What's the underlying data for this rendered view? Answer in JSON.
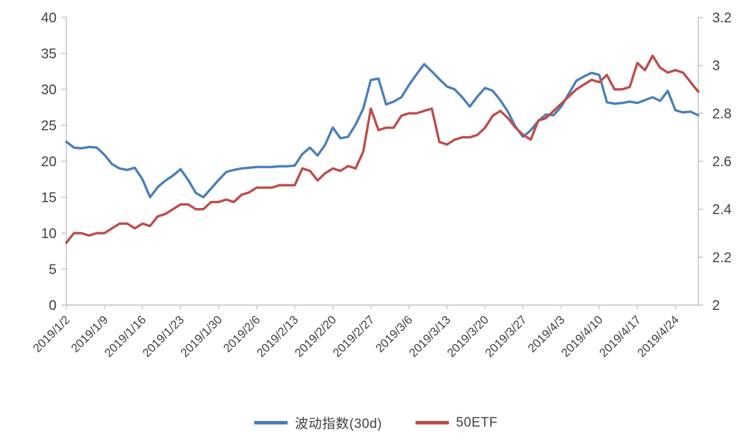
{
  "chart_data": {
    "type": "line",
    "title": "",
    "x_labels": [
      "2019/1/2",
      "2019/1/9",
      "2019/1/16",
      "2019/1/23",
      "2019/1/30",
      "2019/2/6",
      "2019/2/13",
      "2019/2/20",
      "2019/2/27",
      "2019/3/6",
      "2019/3/13",
      "2019/3/20",
      "2019/3/27",
      "2019/4/3",
      "2019/4/10",
      "2019/4/17",
      "2019/4/24"
    ],
    "label_every": 5,
    "left_axis": {
      "min": 0,
      "max": 40,
      "ticks": [
        "0",
        "5",
        "10",
        "15",
        "20",
        "25",
        "30",
        "35",
        "40"
      ]
    },
    "right_axis": {
      "min": 2,
      "max": 3.2,
      "ticks": [
        "2",
        "2.2",
        "2.4",
        "2.6",
        "2.8",
        "3",
        "3.2"
      ]
    },
    "grid": "off",
    "legend_position": "bottom",
    "axis_color": "#bfbfbf",
    "tick_text_color": "#404040",
    "series": [
      {
        "name": "波动指数(30d)",
        "axis": "left",
        "color": "#4a7ebb",
        "values": [
          22.7,
          21.9,
          21.8,
          22.0,
          21.9,
          20.9,
          19.6,
          19.0,
          18.8,
          19.1,
          17.5,
          15.0,
          16.4,
          17.3,
          18.0,
          18.9,
          17.4,
          15.6,
          15.0,
          16.2,
          17.4,
          18.5,
          18.8,
          19.0,
          19.1,
          19.2,
          19.2,
          19.2,
          19.3,
          19.3,
          19.4,
          21.0,
          21.9,
          20.8,
          22.3,
          24.7,
          23.2,
          23.4,
          25.1,
          27.3,
          31.3,
          31.5,
          27.9,
          28.3,
          28.9,
          30.6,
          32.1,
          33.5,
          32.5,
          31.4,
          30.4,
          30.0,
          28.9,
          27.6,
          29.0,
          30.2,
          29.8,
          28.5,
          26.9,
          24.8,
          23.4,
          24.3,
          25.6,
          26.5,
          26.4,
          27.6,
          29.4,
          31.2,
          31.8,
          32.3,
          32.0,
          28.2,
          28.0,
          28.1,
          28.3,
          28.1,
          28.5,
          28.9,
          28.4,
          29.8,
          27.1,
          26.8,
          26.9,
          26.4
        ]
      },
      {
        "name": "50ETF",
        "axis": "right",
        "color": "#be4b48",
        "values": [
          2.26,
          2.3,
          2.3,
          2.29,
          2.3,
          2.3,
          2.32,
          2.34,
          2.34,
          2.32,
          2.34,
          2.33,
          2.37,
          2.38,
          2.4,
          2.42,
          2.42,
          2.4,
          2.4,
          2.43,
          2.43,
          2.44,
          2.43,
          2.46,
          2.47,
          2.49,
          2.49,
          2.49,
          2.5,
          2.5,
          2.5,
          2.57,
          2.56,
          2.52,
          2.55,
          2.57,
          2.56,
          2.58,
          2.57,
          2.64,
          2.82,
          2.73,
          2.74,
          2.74,
          2.79,
          2.8,
          2.8,
          2.81,
          2.82,
          2.68,
          2.67,
          2.69,
          2.7,
          2.7,
          2.71,
          2.74,
          2.79,
          2.81,
          2.78,
          2.74,
          2.71,
          2.69,
          2.77,
          2.78,
          2.81,
          2.84,
          2.87,
          2.9,
          2.92,
          2.94,
          2.93,
          2.96,
          2.9,
          2.9,
          2.91,
          3.01,
          2.98,
          3.04,
          2.99,
          2.97,
          2.98,
          2.97,
          2.93,
          2.89
        ]
      }
    ]
  },
  "legend": {
    "item1": "波动指数(30d)",
    "item2": "50ETF"
  }
}
